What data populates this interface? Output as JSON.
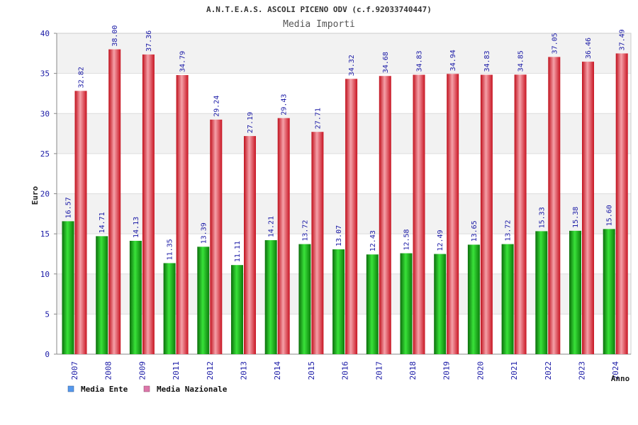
{
  "chart_data": {
    "type": "bar",
    "title": "A.N.T.E.A.S. ASCOLI PICENO ODV (c.f.92033740447)",
    "subtitle": "Media Importi",
    "ylabel": "Euro",
    "xlabel": "Anno",
    "ylim": [
      0,
      40
    ],
    "yticks": [
      0,
      5,
      10,
      15,
      20,
      25,
      30,
      35,
      40
    ],
    "ytick_labels": [
      "0",
      "5",
      "10",
      "15",
      "20",
      "25",
      "30",
      "35",
      "40"
    ],
    "categories": [
      "2007",
      "2008",
      "2009",
      "2011",
      "2012",
      "2013",
      "2014",
      "2015",
      "2016",
      "2017",
      "2018",
      "2019",
      "2020",
      "2021",
      "2022",
      "2023",
      "2024"
    ],
    "series": [
      {
        "name": "Media Ente",
        "color": "#1faa1f",
        "legend_color": "#5599ee",
        "values": [
          16.57,
          14.71,
          14.13,
          11.35,
          13.39,
          11.11,
          14.21,
          13.72,
          13.07,
          12.43,
          12.58,
          12.49,
          13.65,
          13.72,
          15.33,
          15.38,
          15.6
        ],
        "labels": [
          "16.57",
          "14.71",
          "14.13",
          "11.35",
          "13.39",
          "11.11",
          "14.21",
          "13.72",
          "13.07",
          "12.43",
          "12.58",
          "12.49",
          "13.65",
          "13.72",
          "15.33",
          "15.38",
          "15.60"
        ]
      },
      {
        "name": "Media Nazionale",
        "color": "#e8202e",
        "legend_color": "#dd77aa",
        "values": [
          32.82,
          38.0,
          37.36,
          34.79,
          29.24,
          27.19,
          29.43,
          27.71,
          34.32,
          34.68,
          34.83,
          34.94,
          34.83,
          34.85,
          37.05,
          36.46,
          37.49
        ],
        "labels": [
          "32.82",
          "38.00",
          "37.36",
          "34.79",
          "29.24",
          "27.19",
          "29.43",
          "27.71",
          "34.32",
          "34.68",
          "34.83",
          "34.94",
          "34.83",
          "34.85",
          "37.05",
          "36.46",
          "37.49"
        ]
      }
    ],
    "grid": true,
    "legend_position": "bottom-left"
  }
}
